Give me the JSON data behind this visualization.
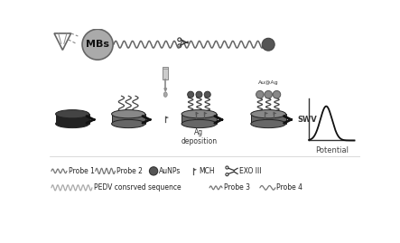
{
  "bg_color": "#ffffff",
  "fig_width": 4.43,
  "fig_height": 2.69,
  "dpi": 100,
  "mbs_label": "MBs",
  "ag_deposition_label": "Ag\ndeposition",
  "swv_label": "SWV",
  "potential_label": "Potential",
  "aunps_label": "Au@Ag",
  "elec_top_color": "#888888",
  "elec_body_color": "#555555",
  "elec1_top_color": "#333333",
  "elec1_body_color": "#111111",
  "mbs_color": "#999999",
  "dark_circle_color": "#555555",
  "probe_color": "#555555",
  "wave_color": "#777777",
  "arrow_color": "#111111"
}
